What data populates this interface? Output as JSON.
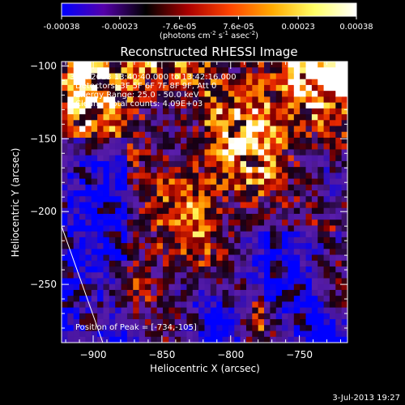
{
  "chart_data": {
    "type": "heatmap",
    "title": "Reconstructed RHESSI Image",
    "colorbar": {
      "ticks": [
        "-0.00038",
        "-0.00023",
        "-7.6e-05",
        "7.6e-05",
        "0.00023",
        "0.00038"
      ],
      "unit_label": "(photons cm",
      "unit_sup1": "-2",
      "unit_mid1": " s",
      "unit_sup2": "-1",
      "unit_mid2": " asec",
      "unit_sup3": "-2",
      "unit_end": ")",
      "range": [
        -0.00038,
        0.00038
      ],
      "colors": [
        "#0000ff",
        "#5500aa",
        "#000000",
        "#aa0000",
        "#ff4400",
        "#ffaa00",
        "#ffff66",
        "#ffffff"
      ]
    },
    "xlabel": "Heliocentric X (arcsec)",
    "ylabel": "Heliocentric Y (arcsec)",
    "xlim": [
      -923,
      -715
    ],
    "ylim": [
      -290,
      -97
    ],
    "xticks": [
      -900,
      -850,
      -800,
      -750
    ],
    "yticks": [
      -100,
      -150,
      -200,
      -250
    ],
    "annotations": [
      "3-Jul-2013 13:40:40.000 to 13:42:16.000",
      "Detectors: 3F 5F 6F 7F 8F 9F, Att 0",
      "Energy Range: 25.0 - 50.0 keV",
      "Clean    Total counts: 4.09E+03"
    ],
    "peak_label": "Position of Peak = [-734,-105]",
    "peak": [
      -734,
      -105
    ],
    "limb_line": [
      [
        -923,
        -210
      ],
      [
        -893,
        -290
      ]
    ],
    "timestamp": "3-Jul-2013 19:27"
  }
}
